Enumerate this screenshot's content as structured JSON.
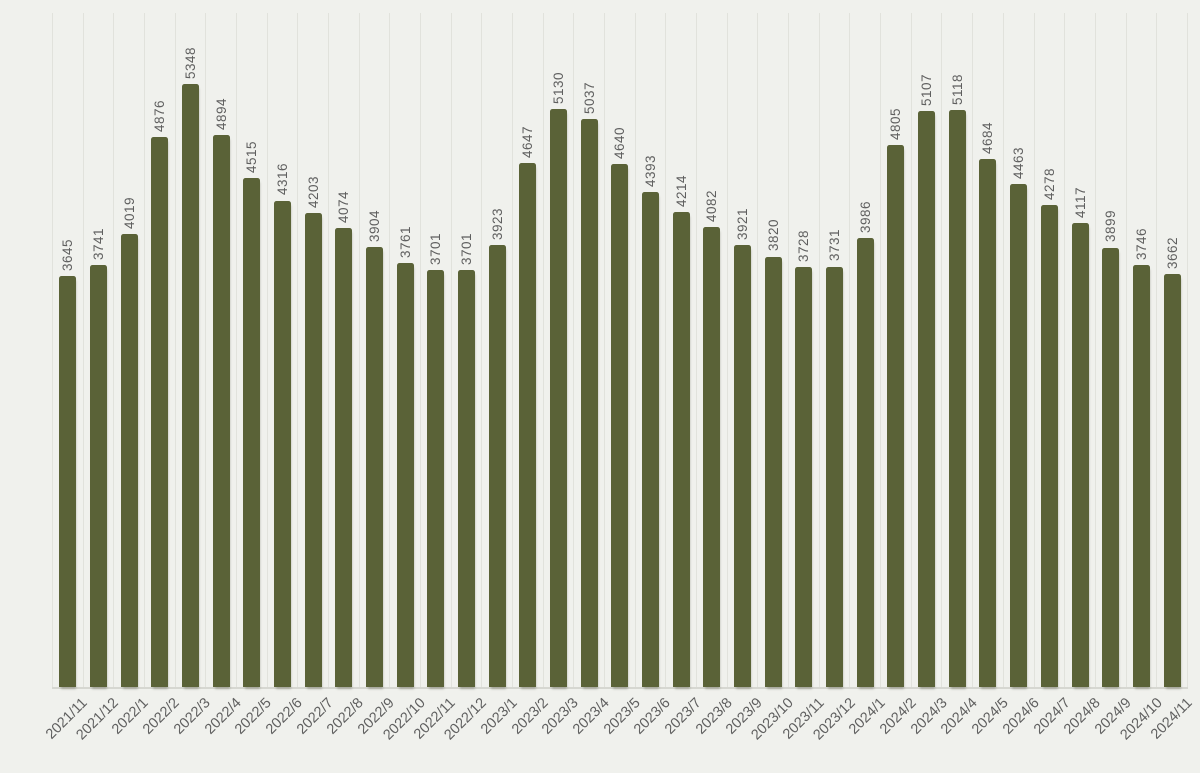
{
  "chart_data": {
    "type": "bar",
    "categories": [
      "2021/11",
      "2021/12",
      "2022/1",
      "2022/2",
      "2022/3",
      "2022/4",
      "2022/5",
      "2022/6",
      "2022/7",
      "2022/8",
      "2022/9",
      "2022/10",
      "2022/11",
      "2022/12",
      "2023/1",
      "2023/2",
      "2023/3",
      "2023/4",
      "2023/5",
      "2023/6",
      "2023/7",
      "2023/8",
      "2023/9",
      "2023/10",
      "2023/11",
      "2023/12",
      "2024/1",
      "2024/2",
      "2024/3",
      "2024/4",
      "2024/5",
      "2024/6",
      "2024/7",
      "2024/8",
      "2024/9",
      "2024/10",
      "2024/11"
    ],
    "values": [
      3645,
      3741,
      4019,
      4876,
      5348,
      4894,
      4515,
      4316,
      4203,
      4074,
      3904,
      3761,
      3701,
      3701,
      3923,
      4647,
      5130,
      5037,
      4640,
      4393,
      4214,
      4082,
      3921,
      3820,
      3728,
      3731,
      3986,
      4805,
      5107,
      5118,
      4684,
      4463,
      4278,
      4117,
      3899,
      3746,
      3662
    ],
    "title": "",
    "xlabel": "",
    "ylabel": "",
    "ylim": [
      0,
      5980
    ],
    "grid": "vertical-only",
    "legend": "none",
    "data_labels": "rotated-90-above-bars",
    "category_labels": "rotated-45",
    "bar_color": "#5a6237",
    "label_color": "#5f5f5f",
    "background_color": "#f0f1ed",
    "gridline_color": "#e1e2dc",
    "axis_color": "#d6d7d1"
  }
}
